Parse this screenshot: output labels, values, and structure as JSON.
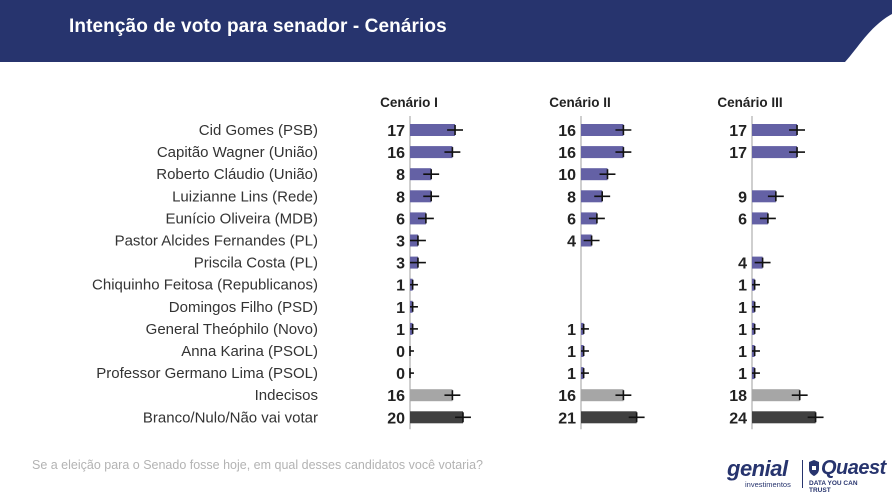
{
  "header": {
    "title": "Intenção de voto para senador - Cenários"
  },
  "footer": {
    "question": "Se a eleição para o Senado fosse hoje, em qual desses candidatos você votaria?",
    "logo_genial": "genial",
    "logo_genial_sub": "investimentos",
    "logo_quaest": "Quaest",
    "logo_quaest_sub": "DATA YOU CAN TRUST"
  },
  "colors": {
    "header": "#27346e",
    "candidate": "#6461a5",
    "undecided": "#a6a6a6",
    "blank": "#404040",
    "errorbar": "#111111",
    "zero_line": "#bfbfbf"
  },
  "chart_data": {
    "type": "bar",
    "orientation": "horizontal",
    "title": "Intenção de voto para senador - Cenários",
    "categories": [
      "Cid Gomes (PSB)",
      "Capitão Wagner (União)",
      "Roberto Cláudio (União)",
      "Luizianne Lins (Rede)",
      "Eunício Oliveira (MDB)",
      "Pastor Alcides Fernandes (PL)",
      "Priscila Costa (PL)",
      "Chiquinho Feitosa (Republicanos)",
      "Domingos Filho (PSD)",
      "General Theóphilo (Novo)",
      "Anna Karina (PSOL)",
      "Professor Germano Lima (PSOL)",
      "Indecisos",
      "Branco/Nulo/Não vai votar"
    ],
    "category_kinds": [
      "candidate",
      "candidate",
      "candidate",
      "candidate",
      "candidate",
      "candidate",
      "candidate",
      "candidate",
      "candidate",
      "candidate",
      "candidate",
      "candidate",
      "undecided",
      "blank"
    ],
    "series": [
      {
        "name": "Cenário I",
        "values": [
          17,
          16,
          8,
          8,
          6,
          3,
          3,
          1,
          1,
          1,
          0,
          0,
          16,
          20
        ]
      },
      {
        "name": "Cenário II",
        "values": [
          16,
          16,
          10,
          8,
          6,
          4,
          null,
          null,
          null,
          1,
          1,
          1,
          16,
          21
        ]
      },
      {
        "name": "Cenário III",
        "values": [
          17,
          17,
          null,
          9,
          6,
          null,
          4,
          1,
          1,
          1,
          1,
          1,
          18,
          24
        ]
      }
    ],
    "error_margin": 3,
    "xlim": [
      0,
      24
    ],
    "grid": false,
    "legend": "none"
  }
}
